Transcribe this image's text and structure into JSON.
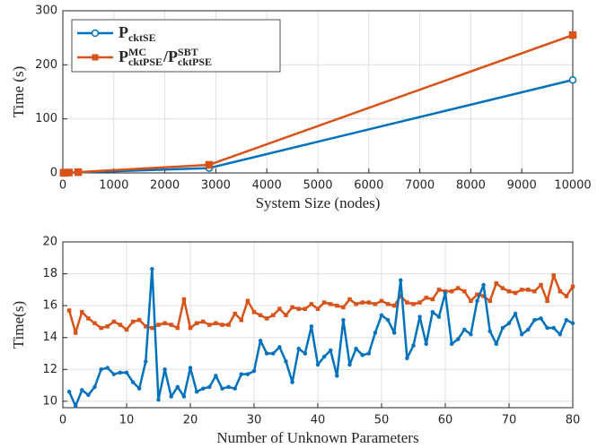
{
  "chart_data": [
    {
      "type": "line",
      "xlabel": "System Size (nodes)",
      "ylabel": "Time (s)",
      "x": [
        14,
        30,
        57,
        118,
        300,
        2869,
        10000
      ],
      "series": [
        {
          "name": [
            {
              "base": "P",
              "sub": "cktSE"
            }
          ],
          "color": "#0072bd",
          "marker": "circle",
          "values": [
            0.1,
            0.2,
            0.3,
            0.5,
            1,
            9,
            172
          ]
        },
        {
          "name": [
            {
              "base": "P",
              "sup": "MC",
              "sub": "cktPSE"
            },
            {
              "base": "/P",
              "sup": "SBT",
              "sub": "cktPSE"
            }
          ],
          "color": "#d95319",
          "marker": "square",
          "values": [
            0.2,
            0.3,
            0.5,
            0.8,
            1.5,
            15,
            255
          ]
        }
      ],
      "xlim": [
        0,
        10000
      ],
      "xticks": [
        0,
        1000,
        2000,
        3000,
        4000,
        5000,
        6000,
        7000,
        8000,
        9000,
        10000
      ],
      "ylim": [
        0,
        300
      ],
      "yticks": [
        0,
        100,
        200,
        300
      ],
      "grid": true,
      "legend": "upper left"
    },
    {
      "type": "line",
      "xlabel": "Number of Unknown Parameters",
      "ylabel": "Time(s)",
      "x": [
        1,
        2,
        3,
        4,
        5,
        6,
        7,
        8,
        9,
        10,
        11,
        12,
        13,
        14,
        15,
        16,
        17,
        18,
        19,
        20,
        21,
        22,
        23,
        24,
        25,
        26,
        27,
        28,
        29,
        30,
        31,
        32,
        33,
        34,
        35,
        36,
        37,
        38,
        39,
        40,
        41,
        42,
        43,
        44,
        45,
        46,
        47,
        48,
        49,
        50,
        51,
        52,
        53,
        54,
        55,
        56,
        57,
        58,
        59,
        60,
        61,
        62,
        63,
        64,
        65,
        66,
        67,
        68,
        69,
        70,
        71,
        72,
        73,
        74,
        75,
        76,
        77,
        78,
        79,
        80
      ],
      "series": [
        {
          "color": "#d95319",
          "marker": "square",
          "values": [
            15.7,
            14.3,
            15.6,
            15.2,
            14.9,
            14.6,
            14.7,
            15.0,
            14.8,
            14.5,
            15.0,
            15.1,
            14.7,
            14.6,
            14.8,
            14.9,
            14.8,
            14.6,
            16.4,
            14.6,
            14.9,
            15.0,
            14.8,
            14.9,
            14.8,
            14.8,
            15.5,
            15.1,
            16.3,
            15.6,
            15.4,
            15.2,
            15.4,
            15.8,
            15.4,
            15.9,
            15.8,
            15.8,
            16.1,
            15.8,
            16.2,
            16.1,
            16.0,
            15.9,
            16.4,
            16.1,
            16.2,
            16.2,
            16.1,
            16.3,
            16.1,
            16.0,
            16.6,
            16.2,
            16.1,
            16.2,
            16.5,
            16.4,
            17.0,
            16.9,
            16.9,
            17.1,
            16.9,
            16.3,
            16.7,
            16.6,
            16.3,
            17.4,
            17.1,
            16.9,
            16.8,
            17.0,
            17.0,
            16.9,
            17.3,
            16.3,
            17.9,
            16.9,
            16.6,
            17.2
          ]
        },
        {
          "color": "#0072bd",
          "marker": "circle",
          "values": [
            10.6,
            9.7,
            10.7,
            10.4,
            10.9,
            12.0,
            12.1,
            11.7,
            11.8,
            11.8,
            11.2,
            10.8,
            12.5,
            18.3,
            10.1,
            12.0,
            10.3,
            10.9,
            10.3,
            12.1,
            10.6,
            10.8,
            10.9,
            11.6,
            10.8,
            10.9,
            10.8,
            11.7,
            11.7,
            11.9,
            13.8,
            13.0,
            13.0,
            13.4,
            12.5,
            11.2,
            13.3,
            13.0,
            14.7,
            12.3,
            12.8,
            13.2,
            11.6,
            15.1,
            12.3,
            13.3,
            12.9,
            13.0,
            14.3,
            15.4,
            15.1,
            14.3,
            17.6,
            12.7,
            13.5,
            15.3,
            13.6,
            15.6,
            15.3,
            16.8,
            13.6,
            13.9,
            14.5,
            14.2,
            16.3,
            17.3,
            14.4,
            13.6,
            14.6,
            14.9,
            15.5,
            14.2,
            14.5,
            15.1,
            15.2,
            14.6,
            14.6,
            14.2,
            15.1,
            14.9
          ]
        }
      ],
      "xlim": [
        0,
        80
      ],
      "xticks": [
        0,
        10,
        20,
        30,
        40,
        50,
        60,
        70,
        80
      ],
      "ylim": [
        9.6,
        20
      ],
      "yticks": [
        10,
        12,
        14,
        16,
        18,
        20
      ],
      "grid": true
    }
  ]
}
